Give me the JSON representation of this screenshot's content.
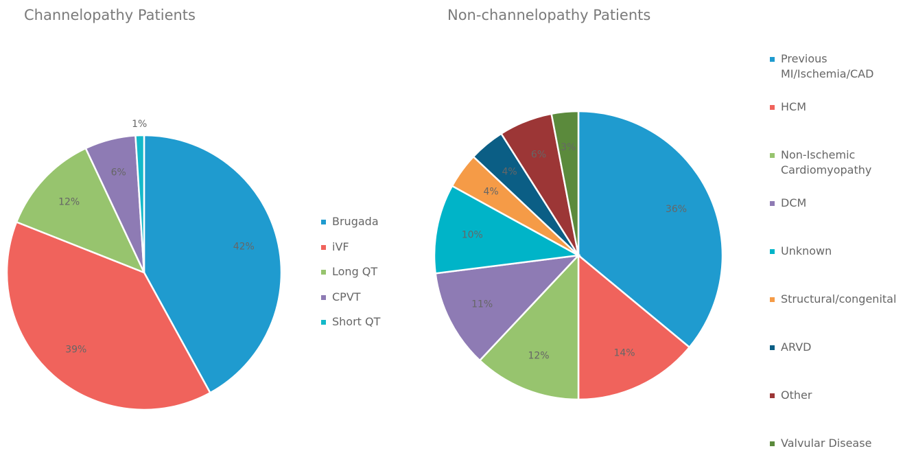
{
  "chart_data": [
    {
      "type": "pie",
      "title": "Channelopathy Patients",
      "categories": [
        "Brugada",
        "iVF",
        "Long QT",
        "CPVT",
        "Short QT"
      ],
      "values": [
        42,
        39,
        12,
        6,
        1
      ],
      "value_labels": [
        "42%",
        "39%",
        "12%",
        "6%",
        "1%"
      ],
      "colors": [
        "#1f9bcf",
        "#f0635c",
        "#97c46e",
        "#8e7bb4",
        "#14b9c9"
      ]
    },
    {
      "type": "pie",
      "title": "Non-channelopathy Patients",
      "categories": [
        "Previous MI/Ischemia/CAD",
        "HCM",
        "Non-Ischemic Cardiomyopathy",
        "DCM",
        "Unknown",
        "Structural/congenital",
        "ARVD",
        "Other",
        "Valvular Disease"
      ],
      "values": [
        36,
        14,
        12,
        11,
        10,
        4,
        4,
        6,
        3
      ],
      "value_labels": [
        "36%",
        "14%",
        "12%",
        "11%",
        "10%",
        "4%",
        "4%",
        "6%",
        "3%"
      ],
      "colors": [
        "#1f9bcf",
        "#f0635c",
        "#97c46e",
        "#8e7bb4",
        "#00b4c8",
        "#f59b47",
        "#0b5e85",
        "#9c3636",
        "#5b8a3c"
      ]
    }
  ]
}
